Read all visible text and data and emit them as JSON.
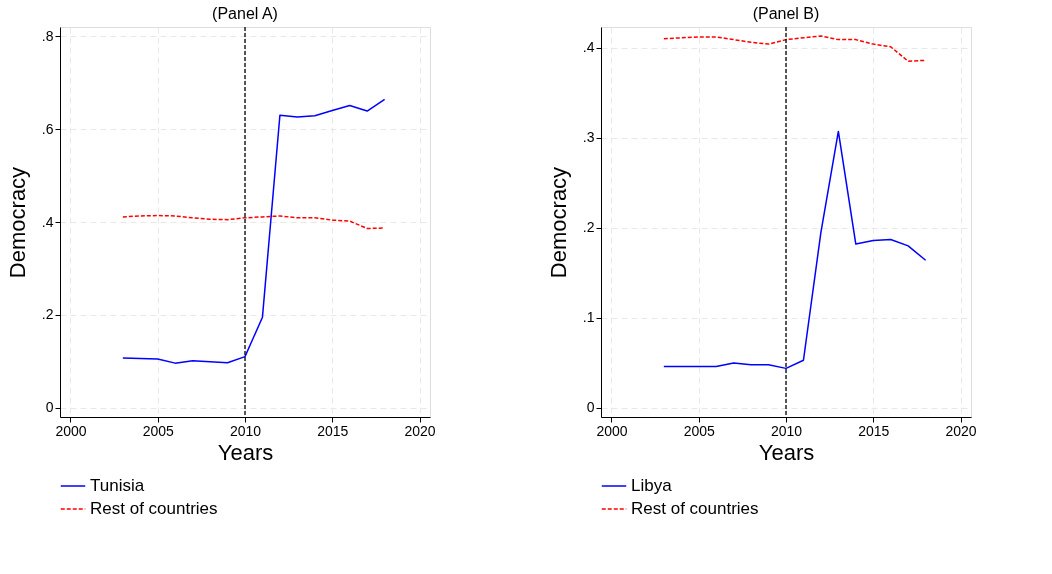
{
  "chart_data": [
    {
      "type": "line",
      "title": "(Panel A)",
      "xlabel": "Years",
      "ylabel": "Democracy",
      "x": [
        2003,
        2004,
        2005,
        2006,
        2007,
        2008,
        2009,
        2010,
        2011,
        2012,
        2013,
        2014,
        2015,
        2016,
        2017,
        2018
      ],
      "series": [
        {
          "name": "Tunisia",
          "color": "#0000ff",
          "line_style": "solid",
          "values": [
            0.107,
            0.106,
            0.105,
            0.096,
            0.101,
            0.099,
            0.097,
            0.11,
            0.195,
            0.63,
            0.626,
            0.629,
            0.64,
            0.651,
            0.639,
            0.664
          ]
        },
        {
          "name": "Rest of countries",
          "color": "#ff0000",
          "line_style": "dashed",
          "values": [
            0.411,
            0.413,
            0.414,
            0.413,
            0.409,
            0.406,
            0.405,
            0.409,
            0.411,
            0.413,
            0.409,
            0.409,
            0.404,
            0.402,
            0.386,
            0.387
          ]
        }
      ],
      "xlim": [
        1999.4,
        2020.6
      ],
      "xticks": [
        2000,
        2005,
        2010,
        2015,
        2020
      ],
      "ylim": [
        -0.02,
        0.82
      ],
      "yticks": [
        0,
        {
          "value": 0.2,
          "label": ".2"
        },
        {
          "value": 0.4,
          "label": ".4"
        },
        {
          "value": 0.6,
          "label": ".6"
        },
        {
          "value": 0.8,
          "label": ".8"
        }
      ],
      "ref_lines": [
        {
          "axis": "x",
          "value": 2010,
          "color": "#000000",
          "line_style": "dashed"
        }
      ],
      "grid": true,
      "legend": "bottom",
      "marker": "none"
    },
    {
      "type": "line",
      "title": "(Panel B)",
      "xlabel": "Years",
      "ylabel": "Democracy",
      "x": [
        2003,
        2004,
        2005,
        2006,
        2007,
        2008,
        2009,
        2010,
        2011,
        2012,
        2013,
        2014,
        2015,
        2016,
        2017,
        2018
      ],
      "series": [
        {
          "name": "Libya",
          "color": "#0000ff",
          "line_style": "solid",
          "values": [
            0.046,
            0.046,
            0.046,
            0.046,
            0.05,
            0.048,
            0.048,
            0.044,
            0.053,
            0.195,
            0.307,
            0.182,
            0.186,
            0.187,
            0.18,
            0.164
          ]
        },
        {
          "name": "Rest of countries",
          "color": "#ff0000",
          "line_style": "dashed",
          "values": [
            0.41,
            0.411,
            0.412,
            0.412,
            0.409,
            0.406,
            0.404,
            0.409,
            0.411,
            0.413,
            0.409,
            0.409,
            0.404,
            0.401,
            0.385,
            0.386
          ]
        }
      ],
      "xlim": [
        1999.4,
        2020.6
      ],
      "xticks": [
        2000,
        2005,
        2010,
        2015,
        2020
      ],
      "ylim": [
        -0.01,
        0.423
      ],
      "yticks": [
        0,
        {
          "value": 0.1,
          "label": ".1"
        },
        {
          "value": 0.2,
          "label": ".2"
        },
        {
          "value": 0.3,
          "label": ".3"
        },
        {
          "value": 0.4,
          "label": ".4"
        }
      ],
      "ref_lines": [
        {
          "axis": "x",
          "value": 2010,
          "color": "#000000",
          "line_style": "dashed"
        }
      ],
      "grid": true,
      "legend": "bottom",
      "marker": "none"
    }
  ]
}
